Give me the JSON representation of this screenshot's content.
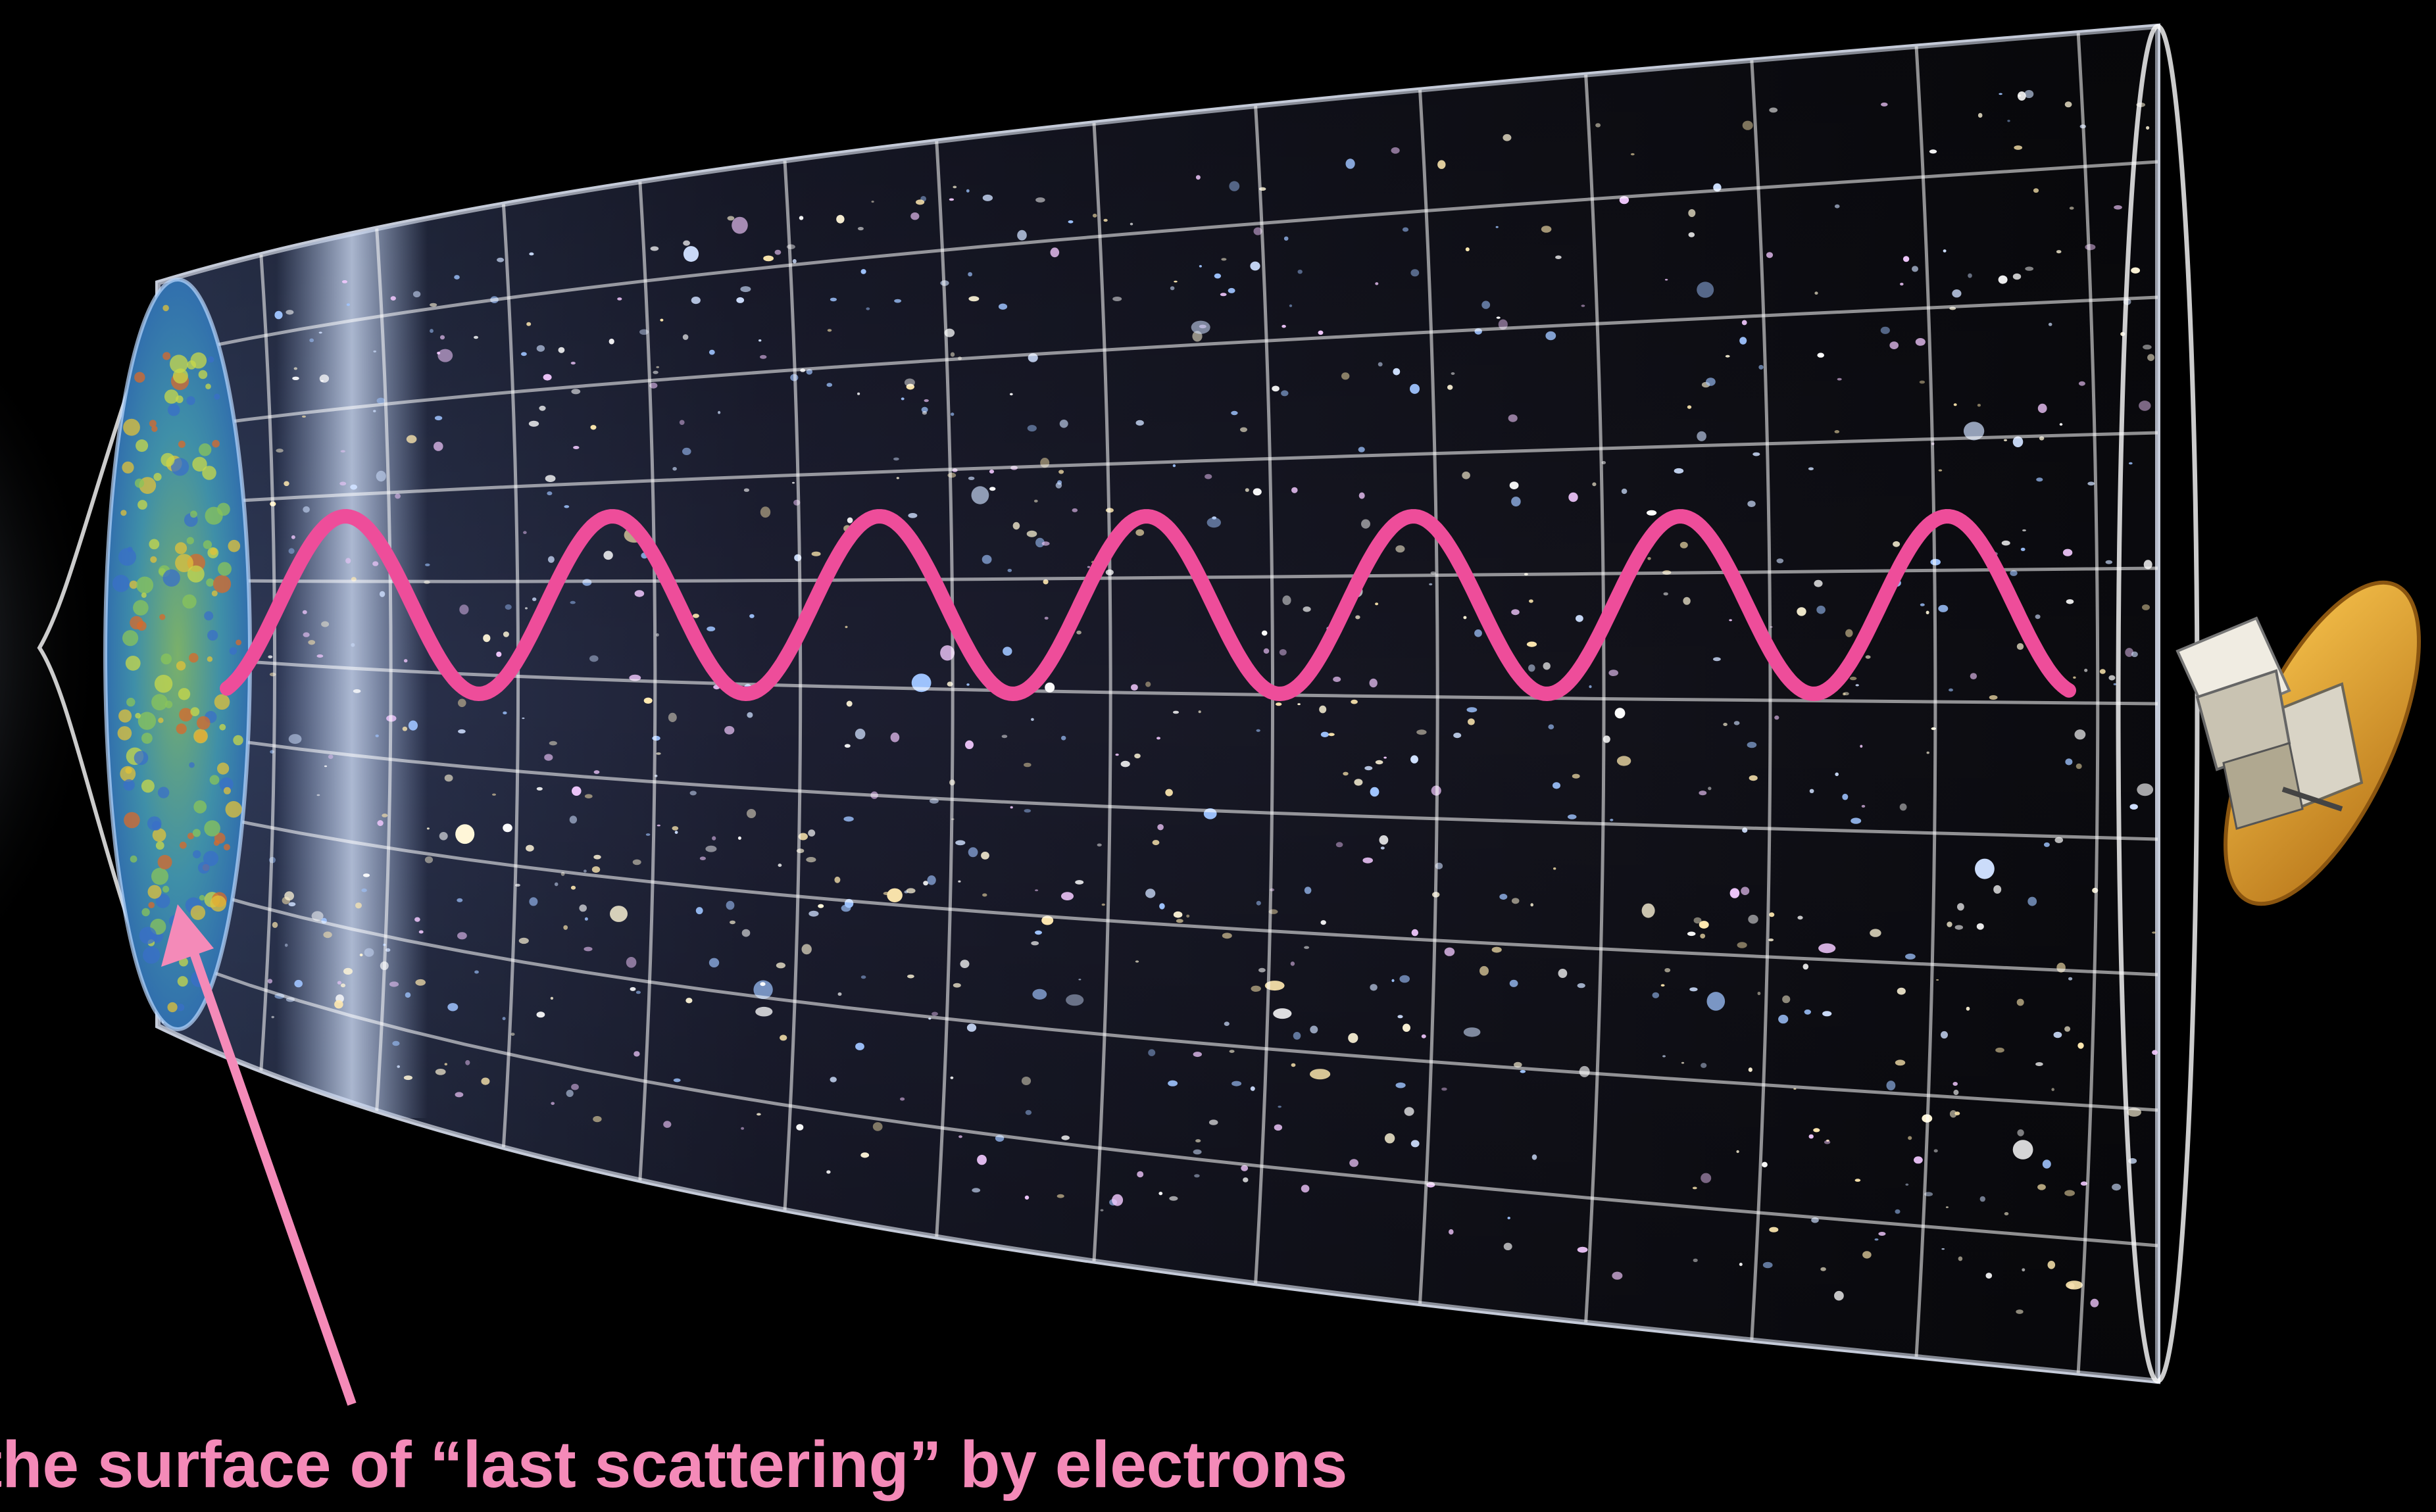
{
  "figure": {
    "caption": "the surface of “last scattering” by electrons",
    "colors": {
      "background": "#000000",
      "wave": "#ee4d9a",
      "arrow": "#f48ab8",
      "caption": "#f48ab8",
      "grid": "#ffffff"
    },
    "icons": {
      "satellite": "satellite-icon",
      "light_wave": "photon-wave-icon",
      "arrow": "pointer-arrow-icon"
    }
  }
}
